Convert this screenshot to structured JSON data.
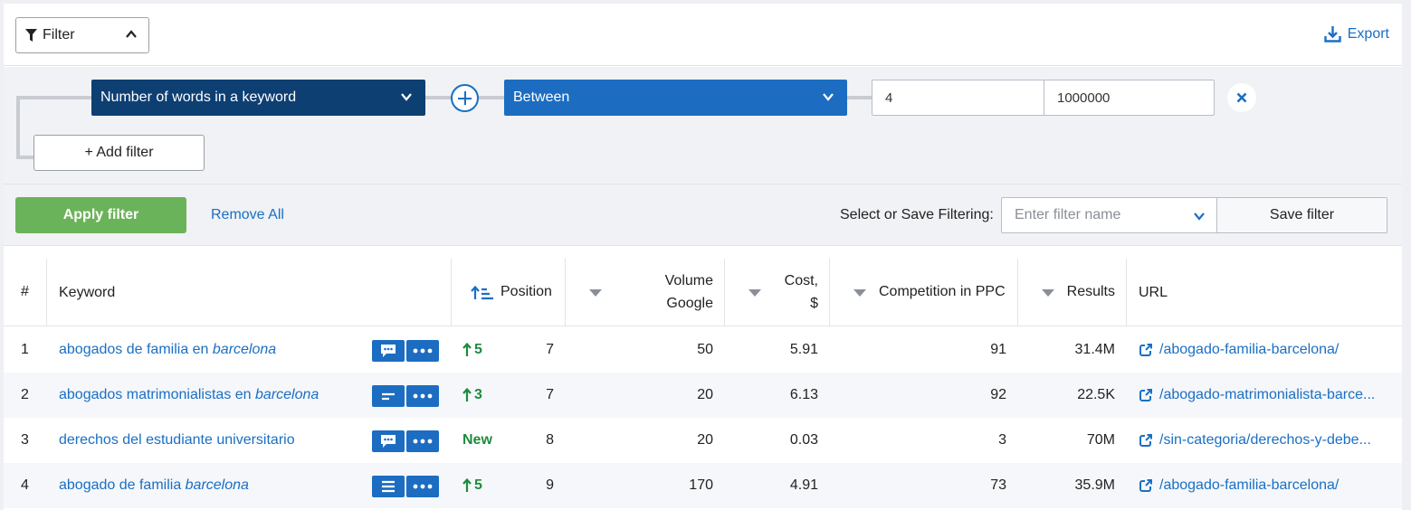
{
  "toolbar": {
    "filter_label": "Filter",
    "export_label": "Export"
  },
  "filter_row": {
    "field": "Number of words in a keyword",
    "operator": "Between",
    "min_value": "4",
    "max_value": "1000000",
    "add_filter_label": "+ Add filter"
  },
  "actions": {
    "apply_label": "Apply filter",
    "remove_all_label": "Remove All",
    "save_filtering_label": "Select or Save Filtering:",
    "filter_name_placeholder": "Enter filter name",
    "save_filter_label": "Save filter"
  },
  "table": {
    "headers": {
      "num": "#",
      "keyword": "Keyword",
      "position": "Position",
      "volume_line1": "Volume",
      "volume_line2": "Google",
      "cost_line1": "Cost,",
      "cost_line2": "$",
      "competition": "Competition in PPC",
      "results": "Results",
      "url": "URL"
    },
    "rows": [
      {
        "num": "1",
        "kw_plain": "abogados de familia en ",
        "kw_italic": "barcelona",
        "trend": "5",
        "trend_type": "up",
        "position": "7",
        "volume": "50",
        "cost": "5.91",
        "competition": "91",
        "results": "31.4M",
        "url": "/abogado-familia-barcelona/",
        "icon": "comment-icon"
      },
      {
        "num": "2",
        "kw_plain": "abogados matrimonialistas en ",
        "kw_italic": "barcelona",
        "trend": "3",
        "trend_type": "up",
        "position": "7",
        "volume": "20",
        "cost": "6.13",
        "competition": "92",
        "results": "22.5K",
        "url": "/abogado-matrimonialista-barce...",
        "icon": "text-short-icon"
      },
      {
        "num": "3",
        "kw_plain": "derechos del estudiante universitario",
        "kw_italic": "",
        "trend": "New",
        "trend_type": "new",
        "position": "8",
        "volume": "20",
        "cost": "0.03",
        "competition": "3",
        "results": "70M",
        "url": "/sin-categoria/derechos-y-debe...",
        "icon": "comment-icon"
      },
      {
        "num": "4",
        "kw_plain": "abogado de familia ",
        "kw_italic": "barcelona",
        "trend": "5",
        "trend_type": "up",
        "position": "9",
        "volume": "170",
        "cost": "4.91",
        "competition": "73",
        "results": "35.9M",
        "url": "/abogado-familia-barcelona/",
        "icon": "list-icon"
      }
    ]
  },
  "colors": {
    "accent": "#1a6fc4",
    "dark_select": "#0d3f73",
    "apply_green": "#6bb35a",
    "trend_green": "#1f8a3e"
  }
}
